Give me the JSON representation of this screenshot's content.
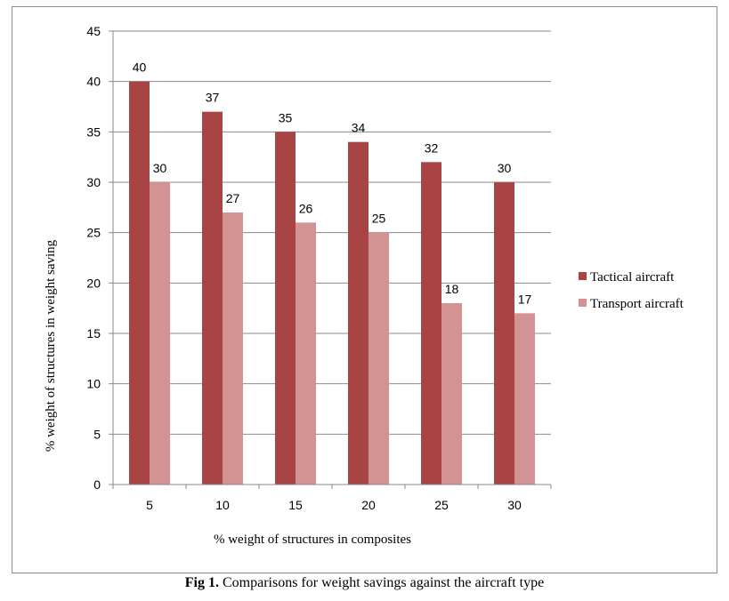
{
  "caption": {
    "label": "Fig 1.",
    "text": " Comparisons for weight savings against the aircraft type"
  },
  "chart_data": {
    "type": "bar",
    "title": "",
    "xlabel": "% weight of structures in composites",
    "ylabel": "% weight of structures in weight saving",
    "categories": [
      "5",
      "10",
      "15",
      "20",
      "25",
      "30"
    ],
    "series": [
      {
        "name": "Tactical aircraft",
        "values": [
          40,
          37,
          35,
          34,
          32,
          30
        ],
        "color": "#a84443"
      },
      {
        "name": "Transport aircraft",
        "values": [
          30,
          27,
          26,
          25,
          18,
          17
        ],
        "color": "#d39393"
      }
    ],
    "ylim": [
      0,
      45
    ],
    "yticks": [
      0,
      5,
      10,
      15,
      20,
      25,
      30,
      35,
      40,
      45
    ],
    "grid": true,
    "legend_position": "right",
    "data_labels": true
  }
}
